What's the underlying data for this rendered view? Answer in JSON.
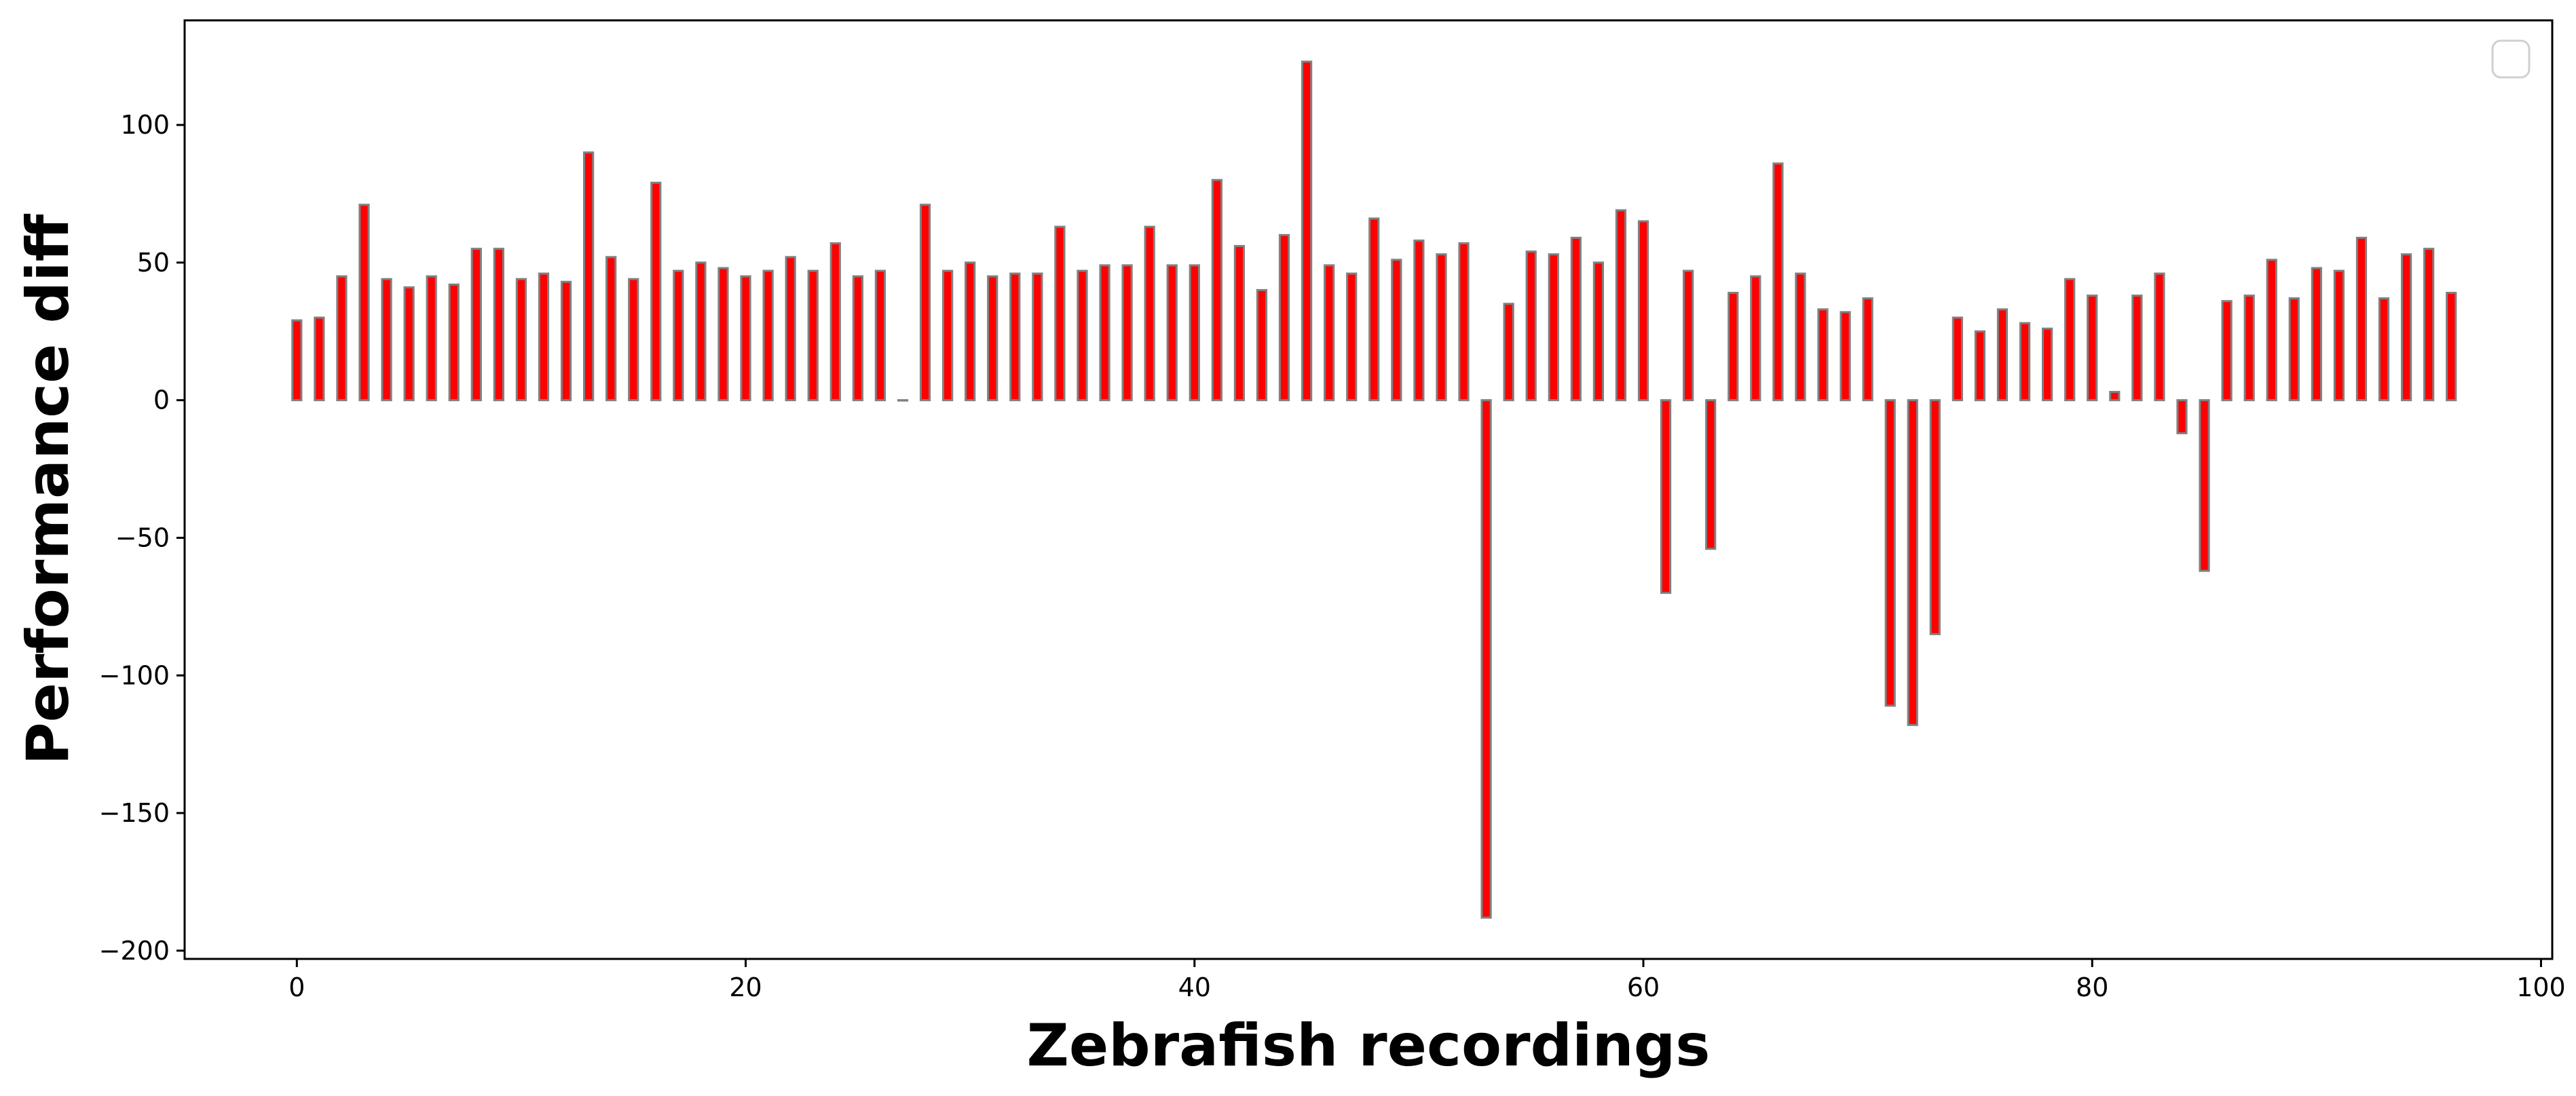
{
  "chart_data": {
    "type": "bar",
    "title": "",
    "xlabel": "Zebrafish recordings",
    "ylabel": "Performance diff",
    "xlim": [
      -5,
      100.5
    ],
    "ylim": [
      -203,
      138
    ],
    "xticks": [
      0,
      20,
      40,
      60,
      80,
      100
    ],
    "yticks": [
      -200,
      -150,
      -100,
      -50,
      0,
      50,
      100
    ],
    "grid": false,
    "legend": "top-right, empty",
    "colors": {
      "bar_fill": "#ff0000",
      "bar_edge": "#808080"
    },
    "series": [
      {
        "x": [
          0,
          1,
          2,
          3,
          4,
          5,
          6,
          7,
          8,
          9,
          10,
          11,
          12,
          13,
          14,
          15,
          16,
          17,
          18,
          19,
          20,
          21,
          22,
          23,
          24,
          25,
          26,
          27,
          28,
          29,
          30,
          31,
          32,
          33,
          34,
          35,
          36,
          37,
          38,
          39,
          40,
          41,
          42,
          43,
          44,
          45,
          46,
          47,
          48,
          49,
          50,
          51,
          52,
          53,
          54,
          55,
          56,
          57,
          58,
          59,
          60,
          61,
          62,
          63,
          64,
          65,
          66,
          67,
          68,
          69,
          70,
          71,
          72,
          73,
          74,
          75,
          76,
          77,
          78,
          79,
          80,
          81,
          82,
          83,
          84,
          85,
          86,
          87,
          88,
          89,
          90,
          91,
          92,
          93,
          94,
          95,
          96
        ],
        "values": [
          29,
          30,
          45,
          71,
          44,
          41,
          45,
          42,
          55,
          55,
          44,
          46,
          43,
          90,
          52,
          44,
          79,
          47,
          50,
          48,
          45,
          47,
          52,
          47,
          57,
          45,
          47,
          0,
          71,
          47,
          50,
          45,
          46,
          46,
          63,
          47,
          49,
          49,
          63,
          49,
          49,
          80,
          56,
          40,
          60,
          123,
          49,
          46,
          66,
          51,
          58,
          53,
          57,
          -188,
          35,
          54,
          53,
          59,
          50,
          69,
          65,
          -70,
          47,
          -54,
          39,
          45,
          86,
          46,
          33,
          32,
          37,
          -111,
          -118,
          -85,
          30,
          25,
          33,
          28,
          26,
          44,
          38,
          3,
          38,
          46,
          -12,
          -62,
          36,
          38,
          51,
          37,
          48,
          47,
          59,
          37,
          53,
          55,
          39
        ]
      }
    ]
  }
}
